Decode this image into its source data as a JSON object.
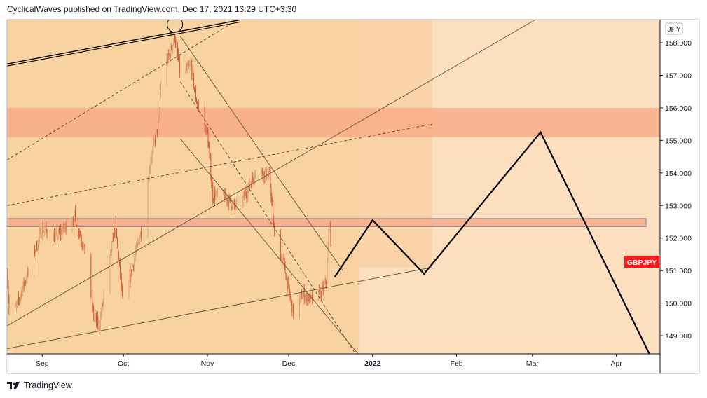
{
  "header": {
    "attribution": "CyclicalWaves published on TradingView.com, Dec 17, 2021 13:29 UTC+3:30"
  },
  "footer": {
    "brand": "TradingView",
    "logo_icon": "tradingview-logo-icon"
  },
  "colors": {
    "background": "#fbdfbf",
    "history_zone": "#f8d2a1",
    "projection_zone": "#fad4a8",
    "resistance_zone": "#f7a985",
    "candle_up": "#d7a371",
    "candle_down": "#d2532f",
    "price_badge": "#ff1a1a",
    "projection_line": "#000000"
  },
  "chart_data": {
    "type": "candlestick",
    "symbol_label": "GBPJPY",
    "currency": "JPY",
    "ylim": [
      148.4,
      158.5
    ],
    "y_ticks": [
      "158.000",
      "157.000",
      "156.000",
      "155.000",
      "154.000",
      "153.000",
      "152.000",
      "151.000",
      "150.000",
      "149.000"
    ],
    "y_tick_values": [
      158,
      157,
      156,
      155,
      154,
      153,
      152,
      151,
      150,
      149
    ],
    "x_ticks": [
      {
        "label": "Sep",
        "date": "2021-09-01"
      },
      {
        "label": "Oct",
        "date": "2021-10-01"
      },
      {
        "label": "Nov",
        "date": "2021-11-01"
      },
      {
        "label": "Dec",
        "date": "2021-12-01"
      },
      {
        "label": "2022",
        "date": "2022-01-01",
        "bold": true
      },
      {
        "label": "Feb",
        "date": "2022-02-01"
      },
      {
        "label": "Mar",
        "date": "2022-03-01"
      },
      {
        "label": "Apr",
        "date": "2022-04-01"
      }
    ],
    "price_path": [
      {
        "date": "2021-08-19",
        "price": 151.1
      },
      {
        "date": "2021-08-20",
        "price": 149.3
      },
      {
        "date": "2021-08-27",
        "price": 151.0
      },
      {
        "date": "2021-09-01",
        "price": 152.3
      },
      {
        "date": "2021-09-06",
        "price": 152.0
      },
      {
        "date": "2021-09-13",
        "price": 152.7
      },
      {
        "date": "2021-09-17",
        "price": 151.5
      },
      {
        "date": "2021-09-20",
        "price": 149.6
      },
      {
        "date": "2021-09-22",
        "price": 149.3
      },
      {
        "date": "2021-09-28",
        "price": 152.4
      },
      {
        "date": "2021-10-01",
        "price": 149.8
      },
      {
        "date": "2021-10-04",
        "price": 151.0
      },
      {
        "date": "2021-10-08",
        "price": 152.4
      },
      {
        "date": "2021-10-11",
        "price": 154.4
      },
      {
        "date": "2021-10-14",
        "price": 155.5
      },
      {
        "date": "2021-10-15",
        "price": 157.2
      },
      {
        "date": "2021-10-18",
        "price": 157.6
      },
      {
        "date": "2021-10-20",
        "price": 158.2
      },
      {
        "date": "2021-10-22",
        "price": 157.0
      },
      {
        "date": "2021-10-26",
        "price": 157.3
      },
      {
        "date": "2021-10-28",
        "price": 156.2
      },
      {
        "date": "2021-11-01",
        "price": 155.2
      },
      {
        "date": "2021-11-03",
        "price": 153.3
      },
      {
        "date": "2021-11-07",
        "price": 153.3
      },
      {
        "date": "2021-11-12",
        "price": 152.9
      },
      {
        "date": "2021-11-16",
        "price": 153.5
      },
      {
        "date": "2021-11-19",
        "price": 154.1
      },
      {
        "date": "2021-11-24",
        "price": 153.9
      },
      {
        "date": "2021-11-26",
        "price": 151.8
      },
      {
        "date": "2021-11-29",
        "price": 151.3
      },
      {
        "date": "2021-12-01",
        "price": 150.4
      },
      {
        "date": "2021-12-03",
        "price": 149.6
      },
      {
        "date": "2021-12-06",
        "price": 150.3
      },
      {
        "date": "2021-12-09",
        "price": 150.1
      },
      {
        "date": "2021-12-13",
        "price": 150.3
      },
      {
        "date": "2021-12-15",
        "price": 150.7
      },
      {
        "date": "2021-12-16",
        "price": 152.6
      },
      {
        "date": "2021-12-17",
        "price": 151.3
      }
    ],
    "projection_path": [
      {
        "date": "2021-12-18",
        "price": 150.8
      },
      {
        "date": "2022-01-01",
        "price": 152.55
      },
      {
        "date": "2022-01-20",
        "price": 150.9
      },
      {
        "date": "2022-03-04",
        "price": 155.25
      },
      {
        "date": "2022-04-14",
        "price": 148.3
      }
    ],
    "zones": [
      {
        "type": "resistance",
        "price_low": 155.1,
        "price_high": 156.0,
        "from": "2021-08-19",
        "to": "2022-04-25"
      },
      {
        "type": "resistance",
        "price_low": 152.35,
        "price_high": 152.6,
        "from": "2021-08-19",
        "to": "2022-04-12"
      }
    ],
    "trend_lines": [
      {
        "style": "solid-double",
        "from": {
          "date": "2021-08-19",
          "price": 157.35
        },
        "to": {
          "date": "2021-11-13",
          "price": 158.7
        }
      },
      {
        "style": "solid",
        "from": {
          "date": "2021-08-19",
          "price": 148.6
        },
        "to": {
          "date": "2022-01-23",
          "price": 151.1
        }
      },
      {
        "style": "solid",
        "from": {
          "date": "2021-08-19",
          "price": 149.3
        },
        "to": {
          "date": "2022-03-04",
          "price": 158.8
        }
      },
      {
        "style": "solid",
        "from": {
          "date": "2021-10-22",
          "price": 158.2
        },
        "to": {
          "date": "2021-12-21",
          "price": 151.0
        }
      },
      {
        "style": "solid",
        "from": {
          "date": "2021-10-22",
          "price": 155.05
        },
        "to": {
          "date": "2021-12-27",
          "price": 148.4
        }
      },
      {
        "style": "dashed",
        "from": {
          "date": "2021-10-22",
          "price": 156.8
        },
        "to": {
          "date": "2021-12-26",
          "price": 148.4
        }
      },
      {
        "style": "dashed",
        "from": {
          "date": "2021-08-19",
          "price": 154.4
        },
        "to": {
          "date": "2021-11-12",
          "price": 158.7
        }
      },
      {
        "style": "dashed",
        "from": {
          "date": "2021-08-19",
          "price": 153.0
        },
        "to": {
          "date": "2022-01-23",
          "price": 155.5
        }
      }
    ],
    "peak_marker": {
      "date": "2021-10-20",
      "price": 158.3
    }
  }
}
